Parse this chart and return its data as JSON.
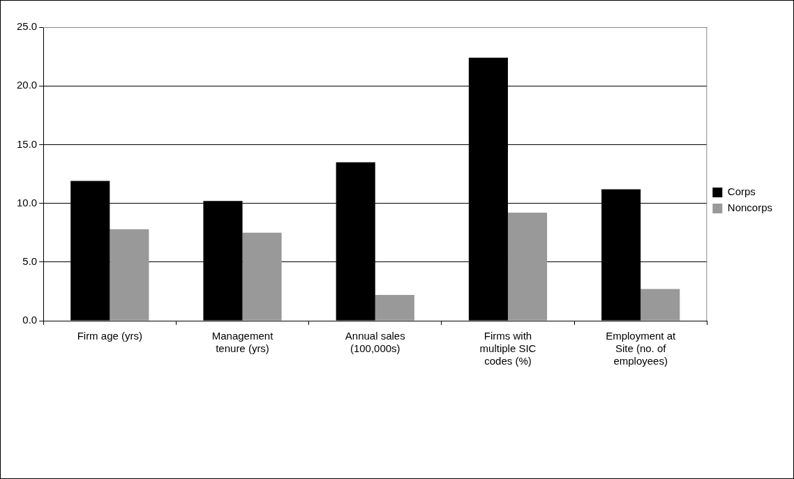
{
  "chart_data": {
    "type": "bar",
    "categories": [
      "Firm age (yrs)",
      "Management tenure (yrs)",
      "Annual sales (100,000s)",
      "Firms with multiple SIC codes (%)",
      "Employment at Site (no. of employees)"
    ],
    "series": [
      {
        "name": "Corps",
        "color": "#000000",
        "values": [
          11.9,
          10.2,
          13.5,
          22.4,
          11.2
        ]
      },
      {
        "name": "Noncorps",
        "color": "#999999",
        "values": [
          7.8,
          7.5,
          2.2,
          9.2,
          2.7
        ]
      }
    ],
    "ylim": [
      0,
      25
    ],
    "yticks": [
      {
        "value": 0,
        "label": "0.0"
      },
      {
        "value": 5,
        "label": "5.0"
      },
      {
        "value": 10,
        "label": "10.0"
      },
      {
        "value": 15,
        "label": "15.0"
      },
      {
        "value": 20,
        "label": "20.0"
      },
      {
        "value": 25,
        "label": "25.0"
      }
    ],
    "grid": "y",
    "legend": "right"
  }
}
